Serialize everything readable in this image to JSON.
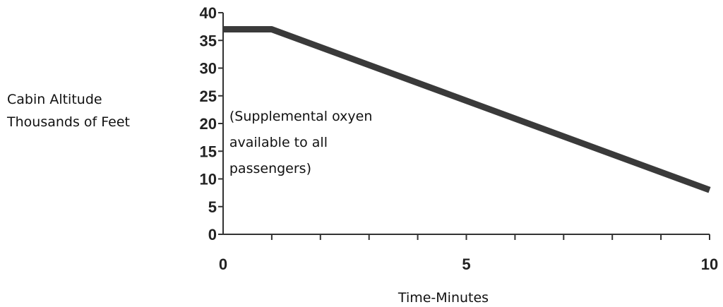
{
  "chart_data": {
    "type": "line",
    "xlabel": "Time-Minutes",
    "ylabel_lines": [
      "Cabin Altitude",
      "Thousands of Feet"
    ],
    "x_ticks": [
      0,
      5,
      10
    ],
    "x_tick_labels": [
      "0",
      "5",
      "10"
    ],
    "y_ticks": [
      0,
      5,
      10,
      15,
      20,
      25,
      30,
      35,
      40
    ],
    "y_tick_labels": [
      "0",
      "5",
      "10",
      "15",
      "20",
      "25",
      "30",
      "35",
      "40"
    ],
    "xlim": [
      0,
      10
    ],
    "ylim": [
      0,
      40
    ],
    "x_minor_step": 1,
    "grid": false,
    "annotation_lines": [
      "(Supplemental oxyen",
      "available to all",
      "passengers)"
    ],
    "annotation_anchor": {
      "x": 0.1,
      "y": 20.5
    },
    "series": [
      {
        "x": [
          0,
          1,
          10
        ],
        "y": [
          37,
          37,
          8
        ],
        "color": "#3a3a3a"
      }
    ]
  }
}
